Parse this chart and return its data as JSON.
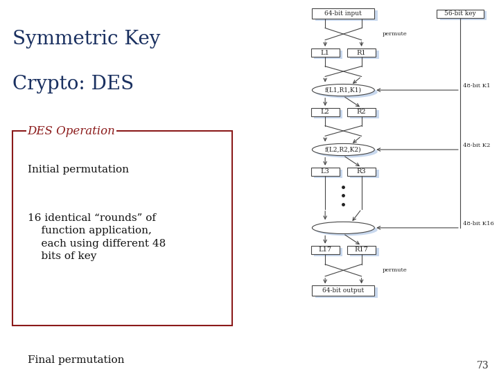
{
  "title_line1": "Symmetric Key",
  "title_line2": "Crypto: DES",
  "title_color": "#1a3060",
  "title_fontsize": 20,
  "box_label": "DES Operation",
  "box_label_color": "#8b1a1a",
  "box_border_color": "#8b1a1a",
  "bullet_color": "#111111",
  "bullets": [
    "Initial permutation",
    "16 identical “rounds” of\n    function application,\n    each using different 48\n    bits of key",
    "Final permutation"
  ],
  "bullet_fontsize": 11,
  "bg_color": "#ffffff",
  "diagram_line_color": "#444444",
  "diagram_text_color": "#222222",
  "shadow_color": "#c8d8ee",
  "page_number": "73"
}
